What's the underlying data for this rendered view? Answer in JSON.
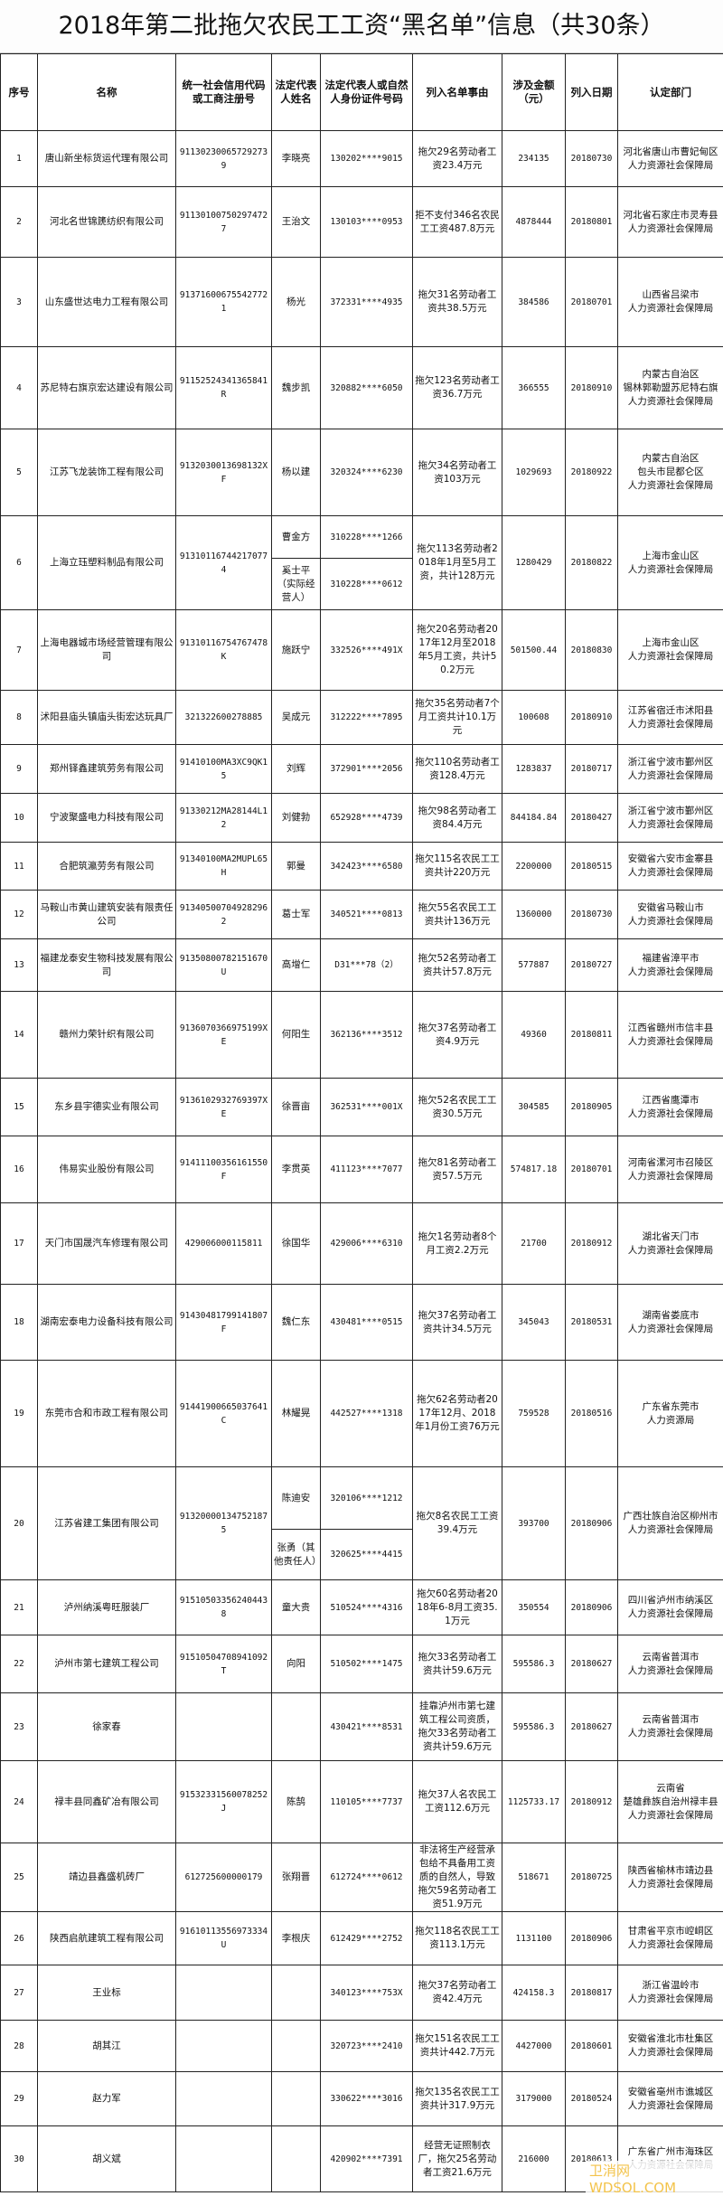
{
  "title": "2018年第二批拖欠农民工工资“黑名单”信息（共30条）",
  "headers": [
    "序号",
    "名称",
    "统一社会信用代码\n或工商注册号",
    "法定代表\n人姓名",
    "法定代表人或自然\n人身份证件号码",
    "列入名单事由",
    "涉及金额\n（元）",
    "列入日期",
    "认定部门"
  ],
  "rows": [
    {
      "no": "1",
      "name": "唐山新坐标货运代理有限公司",
      "code": "911302300657292739",
      "reps": [
        {
          "name": "李晓亮",
          "id": "130202****9015"
        }
      ],
      "reason": "拖欠29名劳动者工资23.4万元",
      "amount": "234135",
      "date": "20180730",
      "dept": "河北省唐山市曹妃甸区\n人力资源社会保障局"
    },
    {
      "no": "2",
      "name": "河北名世锦篪纺织有限公司",
      "code": "911301007502974727",
      "reps": [
        {
          "name": "王治文",
          "id": "130103****0953"
        }
      ],
      "reason": "拒不支付346名农民工工资487.8万元",
      "amount": "4878444",
      "date": "20180801",
      "dept": "河北省石家庄市灵寿县\n人力资源社会保障局"
    },
    {
      "no": "3",
      "name": "山东盛世达电力工程有限公司",
      "code": "913716006755427721",
      "reps": [
        {
          "name": "杨光",
          "id": "372331****4935"
        }
      ],
      "reason": "拖欠31名劳动者工资共38.5万元",
      "amount": "384586",
      "date": "20180701",
      "dept": "山西省吕梁市\n人力资源社会保障局"
    },
    {
      "no": "4",
      "name": "苏尼特右旗京宏达建设有限公司",
      "code": "91152524341365841R",
      "reps": [
        {
          "name": "魏步凯",
          "id": "320882****6050"
        }
      ],
      "reason": "拖欠123名劳动者工资36.7万元",
      "amount": "366555",
      "date": "20180910",
      "dept": "内蒙古自治区\n锡林郭勒盟苏尼特右旗\n人力资源社会保障局"
    },
    {
      "no": "5",
      "name": "江苏飞龙装饰工程有限公司",
      "code": "91320300136981​32XF",
      "reps": [
        {
          "name": "杨以建",
          "id": "320324****6230"
        }
      ],
      "reason": "拖欠34名劳动者工资103万元",
      "amount": "1029693",
      "date": "20180922",
      "dept": "内蒙古自治区\n包头市昆都仑区\n人力资源社会保障局"
    },
    {
      "no": "6",
      "name": "上海立珏塑料制品有限公司",
      "code": "913101167442170774",
      "reps": [
        {
          "name": "曹金方",
          "id": "310228****1266"
        },
        {
          "name": "奚士平（实际经营人）",
          "id": "310228****0612"
        }
      ],
      "reason": "拖欠113名劳动者2018年1月至5月工资，共计128万元",
      "amount": "1280429",
      "date": "20180822",
      "dept": "上海市金山区\n人力资源社会保障局"
    },
    {
      "no": "7",
      "name": "上海电器城市场经营管理有限公司",
      "code": "91310116754767478K",
      "reps": [
        {
          "name": "施跃宁",
          "id": "332526****491X"
        }
      ],
      "reason": "拖欠20名劳动者2017年12月至2018年5月工资，共计50.2万元",
      "amount": "501500.44",
      "date": "20180830",
      "dept": "上海市金山区\n人力资源社会保障局"
    },
    {
      "no": "8",
      "name": "沭阳县庙头镇庙头街宏达玩具厂",
      "code": "321322600278885",
      "reps": [
        {
          "name": "吴成元",
          "id": "312222****7895"
        }
      ],
      "reason": "拖欠35名劳动者7个月工资共计10.1万元",
      "amount": "100608",
      "date": "20180910",
      "dept": "江苏省宿迁市沭阳县\n人力资源社会保障局"
    },
    {
      "no": "9",
      "name": "郑州铎鑫建筑劳务有限公司",
      "code": "91410100MA3XC9QK15",
      "reps": [
        {
          "name": "刘辉",
          "id": "372901****2056"
        }
      ],
      "reason": "拖欠110名劳动者工资128.4万元",
      "amount": "1283837",
      "date": "20180717",
      "dept": "浙江省宁波市鄞州区\n人力资源社会保障局"
    },
    {
      "no": "10",
      "name": "宁波聚盛电力科技有限公司",
      "code": "91330212MA28144L12",
      "reps": [
        {
          "name": "刘健勃",
          "id": "652928****4739"
        }
      ],
      "reason": "拖欠98名劳动者工资84.4万元",
      "amount": "844184.84",
      "date": "20180427",
      "dept": "浙江省宁波市鄞州区\n人力资源社会保障局"
    },
    {
      "no": "11",
      "name": "合肥筑瀛劳务有限公司",
      "code": "91340100MA2MUPL65H",
      "reps": [
        {
          "name": "郭曼",
          "id": "342423****6580"
        }
      ],
      "reason": "拖欠115名农民工工资共计220万元",
      "amount": "2200000",
      "date": "20180515",
      "dept": "安徽省六安市金寨县\n人力资源社会保障局"
    },
    {
      "no": "12",
      "name": "马鞍山市黄山建筑安装有限责任公司",
      "code": "913405007049282962",
      "reps": [
        {
          "name": "葛士军",
          "id": "340521****0813"
        }
      ],
      "reason": "拖欠55名农民工工资共计136万元",
      "amount": "1360000",
      "date": "20180730",
      "dept": "安徽省马鞍山市\n人力资源社会保障局"
    },
    {
      "no": "13",
      "name": "福建龙泰安生物科技发展有限公司",
      "code": "91350800782151670U",
      "reps": [
        {
          "name": "高增仁",
          "id": "D31***78（2）"
        }
      ],
      "reason": "拖欠52名劳动者工资共计57.8万元",
      "amount": "577887",
      "date": "20180727",
      "dept": "福建省漳平市\n人力资源社会保障局"
    },
    {
      "no": "14",
      "name": "赣州力荣针织有限公司",
      "code": "91360703669751​99XE",
      "reps": [
        {
          "name": "何阳生",
          "id": "362136****3512"
        }
      ],
      "reason": "拖欠37名劳动者工资4.9万元",
      "amount": "49360",
      "date": "20180811",
      "dept": "江西省赣州市信丰县\n人力资源社会保障局"
    },
    {
      "no": "15",
      "name": "东乡县宇德实业有限公司",
      "code": "91361029327693​97XE",
      "reps": [
        {
          "name": "徐晋亩",
          "id": "362531****001X"
        }
      ],
      "reason": "拖欠52名农民工工资30.5万元",
      "amount": "304585",
      "date": "20180905",
      "dept": "江西省鹰潭市\n人力资源社会保障局"
    },
    {
      "no": "16",
      "name": "伟易实业股份有限公司",
      "code": "91411100356161550F",
      "reps": [
        {
          "name": "李贯英",
          "id": "411123****7077"
        }
      ],
      "reason": "拖欠81名劳动者工资57.5万元",
      "amount": "574817.18",
      "date": "20180701",
      "dept": "河南省漯河市召陵区\n人力资源社会保障局"
    },
    {
      "no": "17",
      "name": "天门市国晟汽车修理有限公司",
      "code": "429006000115811",
      "reps": [
        {
          "name": "徐国华",
          "id": "429006****6310"
        }
      ],
      "reason": "拖欠1名劳动者8个月工资2.2万元",
      "amount": "21700",
      "date": "20180912",
      "dept": "湖北省天门市\n人力资源社会保障局"
    },
    {
      "no": "18",
      "name": "湖南宏泰电力设备科技有限公司",
      "code": "91430481799141807F",
      "reps": [
        {
          "name": "魏仁东",
          "id": "430481****0515"
        }
      ],
      "reason": "拖欠37名劳动者工资共计34.5万元",
      "amount": "345043",
      "date": "20180531",
      "dept": "湖南省娄底市\n人力资源社会保障局"
    },
    {
      "no": "19",
      "name": "东莞市合和市政工程有限公司",
      "code": "91441900665037641C",
      "reps": [
        {
          "name": "林耀晃",
          "id": "442527****1318"
        }
      ],
      "reason": "拖欠62名劳动者2017年12月、2018年1月份工资76万元",
      "amount": "759528",
      "date": "20180516",
      "dept": "广东省东莞市\n人力资源局"
    },
    {
      "no": "20",
      "name": "江苏省建工集团有限公司",
      "code": "913200001347521875",
      "reps": [
        {
          "name": "陈迪安",
          "id": "320106****1212"
        },
        {
          "name": "张勇（其他责任人）",
          "id": "320625****4415"
        }
      ],
      "reason": "拖欠8名农民工工资39.4万元",
      "amount": "393700",
      "date": "20180906",
      "dept": "广西壮族自治区柳州市\n人力资源社会保障局"
    },
    {
      "no": "21",
      "name": "泸州纳溪粤旺服装厂",
      "code": "915105033562404438",
      "reps": [
        {
          "name": "童大贵",
          "id": "510524****4316"
        }
      ],
      "reason": "拖欠60名劳动者2018年6-8月工资35.1万元",
      "amount": "350554",
      "date": "20180906",
      "dept": "四川省泸州市纳溪区\n人力资源社会保障局"
    },
    {
      "no": "22",
      "name": "泸州市第七建筑工程公司",
      "code": "91510504708941092T",
      "reps": [
        {
          "name": "向阳",
          "id": "510502****1475"
        }
      ],
      "reason": "拖欠33名劳动者工资共计59.6万元",
      "amount": "595586.3",
      "date": "20180627",
      "dept": "云南省普洱市\n人力资源社会保障局"
    },
    {
      "no": "23",
      "name": "徐家春",
      "code": "",
      "reps": [
        {
          "name": "",
          "id": "430421****8531"
        }
      ],
      "reason": "挂靠泸州市第七建筑工程公司资质，拖欠33名劳动者工资共计59.6万元",
      "amount": "595586.3",
      "date": "20180627",
      "dept": "云南省普洱市\n人力资源社会保障局"
    },
    {
      "no": "24",
      "name": "禄丰县同鑫矿冶有限公司",
      "code": "91532331560078252J",
      "reps": [
        {
          "name": "陈鹄",
          "id": "110105****7737"
        }
      ],
      "reason": "拖欠37人名农民工工资112.6万元",
      "amount": "1125733.17",
      "date": "20180912",
      "dept": "云南省\n楚雄彝族自治州禄丰县\n人力资源社会保障局"
    },
    {
      "no": "25",
      "name": "靖边县鑫盛机砖厂",
      "code": "612725600000179",
      "reps": [
        {
          "name": "张翔晋",
          "id": "612724****0612"
        }
      ],
      "reason": "非法将生产经营承包给不具备用工资质的自然人，导致拖欠59名劳动者工资51.9万元",
      "amount": "518671",
      "date": "20180725",
      "dept": "陕西省榆林市靖边县\n人力资源社会保障局"
    },
    {
      "no": "26",
      "name": "陕西启航建筑工程有限公司",
      "code": "91610113556973334U",
      "reps": [
        {
          "name": "李根庆",
          "id": "612429****2752"
        }
      ],
      "reason": "拖欠118名农民工工资113.1万元",
      "amount": "1131100",
      "date": "20180906",
      "dept": "甘肃省平京市崆峒区\n人力资源社会保障局"
    },
    {
      "no": "27",
      "name": "王业标",
      "code": "",
      "reps": [
        {
          "name": "",
          "id": "340123****753X"
        }
      ],
      "reason": "拖欠37名劳动者工资42.4万元",
      "amount": "424158.3",
      "date": "20180817",
      "dept": "浙江省温岭市\n人力资源社会保障局"
    },
    {
      "no": "28",
      "name": "胡其江",
      "code": "",
      "reps": [
        {
          "name": "",
          "id": "320723****2410"
        }
      ],
      "reason": "拖欠151名农民工工资共计442.7万元",
      "amount": "4427000",
      "date": "20180601",
      "dept": "安徽省淮北市杜集区\n人力资源社会保障局"
    },
    {
      "no": "29",
      "name": "赵力军",
      "code": "",
      "reps": [
        {
          "name": "",
          "id": "330622****3016"
        }
      ],
      "reason": "拖欠135名农民工工资共计317.9万元",
      "amount": "3179000",
      "date": "20180524",
      "dept": "安徽省亳州市谯城区\n人力资源社会保障局"
    },
    {
      "no": "30",
      "name": "胡义斌",
      "code": "",
      "reps": [
        {
          "name": "",
          "id": "420902****7391"
        }
      ],
      "reason": "经营无证照制衣厂，拖欠25名劳动者工资21.6万元",
      "amount": "216000",
      "date": "20180613",
      "dept": "广东省广州市海珠区\n人力资源社会保障局"
    }
  ],
  "watermark": "卫消网 WDSOL.COM"
}
